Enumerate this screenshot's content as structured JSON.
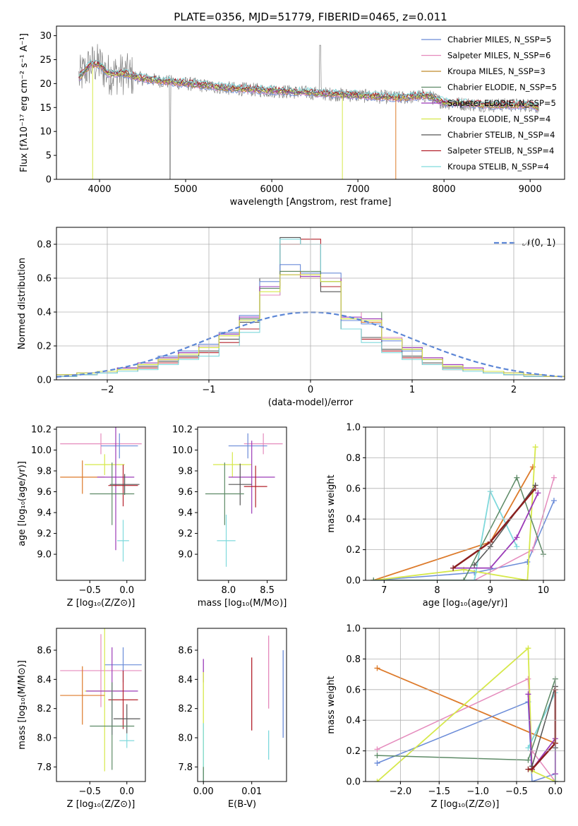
{
  "colors": {
    "blue": "#6a8bd8",
    "pink": "#e58bbd",
    "orange": "#dd7a2a",
    "green": "#5d8a66",
    "purple": "#9b3bb8",
    "lime": "#d6e84a",
    "gray": "#777777",
    "red": "#b3202a",
    "darkred": "#8b2020",
    "cyan": "#7fd9dc"
  },
  "chart_data": [
    {
      "type": "line",
      "title": "PLATE=0356, MJD=51779, FIBERID=0465, z=0.011",
      "xlabel": "wavelength [Angstrom, rest frame]",
      "ylabel": "Flux [fλ10⁻¹⁷ erg cm⁻² s⁻¹ A⁻¹]",
      "xlim": [
        3500,
        9400
      ],
      "ylim": [
        0,
        32
      ],
      "xticks": [
        "4000",
        "5000",
        "6000",
        "7000",
        "8000",
        "9000"
      ],
      "yticks": [
        "0",
        "5",
        "10",
        "15",
        "20",
        "25",
        "30"
      ],
      "grid": false,
      "legend_position": "top-right",
      "legend": [
        {
          "label": "Chabrier MILES, N_SSP=5",
          "color": "#6a8bd8"
        },
        {
          "label": "Salpeter MILES, N_SSP=6",
          "color": "#e58bbd"
        },
        {
          "label": "Kroupa MILES, N_SSP=3",
          "color": "#c08a2a"
        },
        {
          "label": "Chabrier ELODIE, N_SSP=5",
          "color": "#5d8a66"
        },
        {
          "label": "Salpeter ELODIE, N_SSP=5",
          "color": "#9b3bb8"
        },
        {
          "label": "Kroupa ELODIE, N_SSP=4",
          "color": "#d6e84a"
        },
        {
          "label": "Chabrier STELIB, N_SSP=4",
          "color": "#555555"
        },
        {
          "label": "Salpeter STELIB, N_SSP=4",
          "color": "#b3202a"
        },
        {
          "label": "Kroupa STELIB, N_SSP=4",
          "color": "#7fd9dc"
        }
      ],
      "continuum": {
        "x": [
          3750,
          3900,
          4000,
          4100,
          4300,
          4500,
          5000,
          5500,
          6000,
          6500,
          7000,
          7500,
          7800,
          8000,
          8500,
          9000,
          9100
        ],
        "y": [
          21,
          24,
          24,
          22,
          22,
          21,
          20,
          19,
          18.5,
          18,
          17.5,
          17,
          17.5,
          16,
          15.5,
          15.5,
          15
        ]
      }
    },
    {
      "type": "line",
      "xlabel": "(data-model)/error",
      "ylabel": "Normed distribution",
      "xlim": [
        -2.5,
        2.5
      ],
      "ylim": [
        0,
        0.9
      ],
      "xticks": [
        "−2",
        "−1",
        "0",
        "1",
        "2"
      ],
      "yticks": [
        "0.0",
        "0.2",
        "0.4",
        "0.6",
        "0.8"
      ],
      "grid": true,
      "legend_position": "top-right",
      "legend": [
        {
          "label": "𝒩(0, 1)",
          "color": "#5c86d6"
        }
      ],
      "bin_edges": [
        -2.5,
        -2.3,
        -2.1,
        -1.9,
        -1.7,
        -1.5,
        -1.3,
        -1.1,
        -0.9,
        -0.7,
        -0.5,
        -0.3,
        -0.1,
        0.1,
        0.3,
        0.5,
        0.7,
        0.9,
        1.1,
        1.3,
        1.5,
        1.7,
        1.9,
        2.1,
        2.3,
        2.5
      ],
      "histograms": [
        {
          "color": "#b3202a",
          "values": [
            0.02,
            0.03,
            0.04,
            0.05,
            0.07,
            0.1,
            0.13,
            0.16,
            0.22,
            0.3,
            0.55,
            0.8,
            0.83,
            0.55,
            0.3,
            0.24,
            0.17,
            0.13,
            0.09,
            0.06,
            0.05,
            0.04,
            0.03,
            0.02,
            0.02
          ]
        },
        {
          "color": "#555555",
          "values": [
            0.02,
            0.03,
            0.04,
            0.06,
            0.08,
            0.11,
            0.14,
            0.17,
            0.24,
            0.34,
            0.6,
            0.84,
            0.8,
            0.52,
            0.3,
            0.25,
            0.18,
            0.14,
            0.1,
            0.07,
            0.05,
            0.04,
            0.03,
            0.02,
            0.02
          ]
        },
        {
          "color": "#7fd9dc",
          "values": [
            0.02,
            0.03,
            0.04,
            0.05,
            0.06,
            0.09,
            0.12,
            0.14,
            0.2,
            0.28,
            0.5,
            0.83,
            0.8,
            0.58,
            0.3,
            0.22,
            0.16,
            0.12,
            0.09,
            0.06,
            0.05,
            0.04,
            0.03,
            0.02,
            0.02
          ]
        },
        {
          "color": "#e58bbd",
          "values": [
            0.03,
            0.04,
            0.05,
            0.07,
            0.09,
            0.12,
            0.16,
            0.2,
            0.26,
            0.36,
            0.5,
            0.62,
            0.62,
            0.58,
            0.4,
            0.36,
            0.25,
            0.19,
            0.13,
            0.09,
            0.07,
            0.05,
            0.04,
            0.03,
            0.02
          ]
        },
        {
          "color": "#6a8bd8",
          "values": [
            0.03,
            0.04,
            0.05,
            0.07,
            0.1,
            0.14,
            0.17,
            0.21,
            0.28,
            0.38,
            0.58,
            0.68,
            0.63,
            0.63,
            0.35,
            0.33,
            0.23,
            0.17,
            0.12,
            0.08,
            0.06,
            0.05,
            0.04,
            0.03,
            0.02
          ]
        },
        {
          "color": "#dd7a2a",
          "values": [
            0.03,
            0.04,
            0.05,
            0.07,
            0.09,
            0.12,
            0.15,
            0.19,
            0.26,
            0.36,
            0.55,
            0.64,
            0.6,
            0.6,
            0.36,
            0.34,
            0.24,
            0.18,
            0.12,
            0.08,
            0.06,
            0.05,
            0.04,
            0.03,
            0.02
          ]
        },
        {
          "color": "#5d8a66",
          "values": [
            0.03,
            0.04,
            0.05,
            0.07,
            0.09,
            0.13,
            0.16,
            0.2,
            0.27,
            0.36,
            0.54,
            0.64,
            0.64,
            0.58,
            0.4,
            0.4,
            0.24,
            0.18,
            0.12,
            0.08,
            0.06,
            0.05,
            0.04,
            0.03,
            0.02
          ]
        },
        {
          "color": "#9b3bb8",
          "values": [
            0.03,
            0.04,
            0.05,
            0.07,
            0.1,
            0.13,
            0.16,
            0.2,
            0.27,
            0.37,
            0.55,
            0.62,
            0.61,
            0.6,
            0.37,
            0.36,
            0.24,
            0.19,
            0.13,
            0.09,
            0.07,
            0.05,
            0.04,
            0.03,
            0.02
          ]
        },
        {
          "color": "#d6e84a",
          "values": [
            0.03,
            0.04,
            0.05,
            0.06,
            0.09,
            0.12,
            0.15,
            0.19,
            0.26,
            0.35,
            0.52,
            0.62,
            0.62,
            0.58,
            0.36,
            0.35,
            0.24,
            0.18,
            0.12,
            0.08,
            0.06,
            0.05,
            0.04,
            0.03,
            0.02
          ]
        }
      ],
      "normal_curve": {
        "mean": 0,
        "sigma": 1
      }
    },
    {
      "type": "scatter",
      "xlabel": "Z [log₁₀(Z/Z⊙)]",
      "ylabel": "age  [log₁₀(age/yr)]",
      "xlim": [
        -0.95,
        0.25
      ],
      "ylim": [
        8.75,
        10.22
      ],
      "xticks": [
        "−0.5",
        "0.0"
      ],
      "yticks": [
        "9.0",
        "9.2",
        "9.4",
        "9.6",
        "9.8",
        "10.0",
        "10.2"
      ],
      "grid": false,
      "crosses": [
        {
          "x": -0.35,
          "y": 10.06,
          "dx": 0.55,
          "dy": 0.1,
          "color": "#e58bbd"
        },
        {
          "x": -0.1,
          "y": 10.04,
          "dx": 0.25,
          "dy": 0.12,
          "color": "#6a8bd8"
        },
        {
          "x": -0.3,
          "y": 9.86,
          "dx": 0.27,
          "dy": 0.1,
          "color": "#d6e84a"
        },
        {
          "x": -0.6,
          "y": 9.74,
          "dx": 0.3,
          "dy": 0.16,
          "color": "#dd7a2a"
        },
        {
          "x": -0.15,
          "y": 9.74,
          "dx": 0.25,
          "dy": 0.7,
          "color": "#9b3bb8"
        },
        {
          "x": -0.05,
          "y": 9.66,
          "dx": 0.2,
          "dy": 0.2,
          "color": "#b3202a"
        },
        {
          "x": -0.03,
          "y": 9.67,
          "dx": 0.2,
          "dy": 0.1,
          "color": "#555555"
        },
        {
          "x": -0.2,
          "y": 9.58,
          "dx": 0.3,
          "dy": 0.3,
          "color": "#5d8a66"
        },
        {
          "x": -0.05,
          "y": 9.13,
          "dx": 0.08,
          "dy": 0.2,
          "color": "#7fd9dc"
        }
      ]
    },
    {
      "type": "scatter",
      "xlabel": "mass [log₁₀(M/M⊙)]",
      "ylabel": "",
      "xlim": [
        7.6,
        8.75
      ],
      "ylim": [
        8.75,
        10.22
      ],
      "xticks": [
        "8.0",
        "8.5"
      ],
      "yticks": [
        "9.0",
        "9.2",
        "9.4",
        "9.6",
        "9.8",
        "10.0",
        "10.2"
      ],
      "grid": false,
      "crosses": [
        {
          "x": 8.45,
          "y": 10.06,
          "dx": 0.25,
          "dy": 0.1,
          "color": "#e58bbd"
        },
        {
          "x": 8.25,
          "y": 10.04,
          "dx": 0.25,
          "dy": 0.12,
          "color": "#6a8bd8"
        },
        {
          "x": 8.05,
          "y": 9.86,
          "dx": 0.25,
          "dy": 0.12,
          "color": "#d6e84a"
        },
        {
          "x": 8.3,
          "y": 9.74,
          "dx": 0.3,
          "dy": 0.35,
          "color": "#9b3bb8"
        },
        {
          "x": 8.35,
          "y": 9.65,
          "dx": 0.15,
          "dy": 0.2,
          "color": "#b3202a"
        },
        {
          "x": 8.15,
          "y": 9.67,
          "dx": 0.15,
          "dy": 0.2,
          "color": "#555555"
        },
        {
          "x": 7.95,
          "y": 9.58,
          "dx": 0.25,
          "dy": 0.3,
          "color": "#5d8a66"
        },
        {
          "x": 7.97,
          "y": 9.13,
          "dx": 0.12,
          "dy": 0.25,
          "color": "#7fd9dc"
        }
      ]
    },
    {
      "type": "line",
      "xlabel": "age  [log₁₀(age/yr)]",
      "ylabel": "mass weight",
      "xlim": [
        6.65,
        10.4
      ],
      "ylim": [
        0,
        1
      ],
      "xticks": [
        "7",
        "8",
        "9",
        "10"
      ],
      "yticks": [
        "0.0",
        "0.2",
        "0.4",
        "0.6",
        "0.8",
        "1.0"
      ],
      "grid": true,
      "series": [
        {
          "color": "#dd7a2a",
          "x": [
            6.8,
            9.0,
            9.8
          ],
          "y": [
            0.0,
            0.25,
            0.74
          ],
          "width": 1.8
        },
        {
          "color": "#6a8bd8",
          "x": [
            6.8,
            8.7,
            9.7,
            10.2
          ],
          "y": [
            0.0,
            0.05,
            0.12,
            0.52
          ],
          "width": 1.5
        },
        {
          "color": "#e58bbd",
          "x": [
            6.8,
            8.7,
            9.8,
            10.2
          ],
          "y": [
            0.0,
            0.0,
            0.2,
            0.67
          ],
          "width": 1.5
        },
        {
          "color": "#d6e84a",
          "x": [
            6.8,
            8.5,
            9.7,
            9.85
          ],
          "y": [
            0.0,
            0.07,
            0.0,
            0.87
          ],
          "width": 1.8
        },
        {
          "color": "#7fd9dc",
          "x": [
            6.8,
            8.7,
            9.0,
            9.5
          ],
          "y": [
            0.0,
            0.0,
            0.58,
            0.22
          ],
          "width": 1.8
        },
        {
          "color": "#5d8a66",
          "x": [
            6.8,
            8.5,
            9.5,
            10.0
          ],
          "y": [
            0.0,
            0.0,
            0.67,
            0.17
          ],
          "width": 1.5
        },
        {
          "color": "#9b3bb8",
          "x": [
            8.3,
            9.0,
            9.5,
            9.9
          ],
          "y": [
            0.08,
            0.08,
            0.28,
            0.57
          ],
          "width": 1.8
        },
        {
          "color": "#555555",
          "x": [
            8.7,
            9.0,
            9.85
          ],
          "y": [
            0.1,
            0.22,
            0.62
          ],
          "width": 1.5
        },
        {
          "color": "#8b2020",
          "x": [
            8.3,
            9.0,
            9.85
          ],
          "y": [
            0.08,
            0.25,
            0.6
          ],
          "width": 2.5
        }
      ]
    },
    {
      "type": "scatter",
      "xlabel": "Z [log₁₀(Z/Z⊙)]",
      "ylabel": "mass [log₁₀(M/M⊙)]",
      "xlim": [
        -0.95,
        0.25
      ],
      "ylim": [
        7.7,
        8.75
      ],
      "xticks": [
        "−0.5",
        "0.0"
      ],
      "yticks": [
        "7.8",
        "8.0",
        "8.2",
        "8.4",
        "8.6"
      ],
      "grid": false,
      "crosses": [
        {
          "x": -0.35,
          "y": 8.46,
          "dx": 0.55,
          "dy": 0.25,
          "color": "#e58bbd"
        },
        {
          "x": -0.05,
          "y": 8.5,
          "dx": 0.25,
          "dy": 0.12,
          "color": "#6a8bd8"
        },
        {
          "x": -0.3,
          "y": 8.32,
          "dx": 0.27,
          "dy": 0.55,
          "color": "#d6e84a"
        },
        {
          "x": -0.6,
          "y": 8.29,
          "dx": 0.3,
          "dy": 0.2,
          "color": "#dd7a2a"
        },
        {
          "x": -0.2,
          "y": 8.32,
          "dx": 0.35,
          "dy": 0.3,
          "color": "#9b3bb8"
        },
        {
          "x": -0.05,
          "y": 8.26,
          "dx": 0.2,
          "dy": 0.2,
          "color": "#b3202a"
        },
        {
          "x": 0.0,
          "y": 8.13,
          "dx": 0.18,
          "dy": 0.1,
          "color": "#555555"
        },
        {
          "x": -0.2,
          "y": 8.08,
          "dx": 0.3,
          "dy": 0.3,
          "color": "#5d8a66"
        },
        {
          "x": 0.0,
          "y": 7.98,
          "dx": 0.1,
          "dy": 0.05,
          "color": "#7fd9dc"
        }
      ]
    },
    {
      "type": "scatter",
      "xlabel": "E(B-V)",
      "ylabel": "",
      "xlim": [
        -0.0012,
        0.0172
      ],
      "ylim": [
        7.7,
        8.75
      ],
      "xticks": [
        "0.00",
        "0.01"
      ],
      "yticks": [
        "7.8",
        "8.0",
        "8.2",
        "8.4",
        "8.6"
      ],
      "grid": false,
      "bars": [
        {
          "x": 0.0,
          "y": 8.46,
          "dy": 0.08,
          "color": "#9b3bb8"
        },
        {
          "x": 0.0,
          "y": 8.1,
          "dy": 0.35,
          "color": "#d6e84a"
        },
        {
          "x": 0.0,
          "y": 7.9,
          "dy": 0.2,
          "color": "#7fd9dc"
        },
        {
          "x": 0.0,
          "y": 7.75,
          "dy": 0.05,
          "color": "#5d8a66"
        },
        {
          "x": 0.01,
          "y": 8.3,
          "dy": 0.25,
          "color": "#b3202a"
        },
        {
          "x": 0.0135,
          "y": 8.45,
          "dy": 0.25,
          "color": "#e58bbd"
        },
        {
          "x": 0.0135,
          "y": 7.95,
          "dy": 0.1,
          "color": "#7fd9dc"
        },
        {
          "x": 0.0165,
          "y": 8.3,
          "dy": 0.3,
          "color": "#6a8bd8"
        }
      ]
    },
    {
      "type": "line",
      "xlabel": "Z [log₁₀(Z/Z⊙)]",
      "ylabel": "mass weight",
      "xlim": [
        -2.45,
        0.12
      ],
      "ylim": [
        0,
        1
      ],
      "xticks": [
        "−2.0",
        "−1.5",
        "−1.0",
        "−0.5",
        "0.0"
      ],
      "yticks": [
        "0.0",
        "0.2",
        "0.4",
        "0.6",
        "0.8",
        "1.0"
      ],
      "grid": true,
      "series": [
        {
          "color": "#dd7a2a",
          "x": [
            -2.3,
            0.0
          ],
          "y": [
            0.74,
            0.25
          ],
          "width": 1.8
        },
        {
          "color": "#6a8bd8",
          "x": [
            -2.3,
            -0.35,
            -0.3,
            0.0
          ],
          "y": [
            0.12,
            0.52,
            0.0,
            0.05
          ],
          "width": 1.5
        },
        {
          "color": "#e58bbd",
          "x": [
            -2.3,
            -0.35,
            -0.3,
            0.0
          ],
          "y": [
            0.21,
            0.67,
            0.2,
            0.0
          ],
          "width": 1.5
        },
        {
          "color": "#d6e84a",
          "x": [
            -2.3,
            -0.35,
            -0.3,
            0.0
          ],
          "y": [
            0.0,
            0.87,
            0.07,
            0.0
          ],
          "width": 1.8
        },
        {
          "color": "#7fd9dc",
          "x": [
            -0.35,
            0.0,
            0.0
          ],
          "y": [
            0.22,
            0.58,
            0.0
          ],
          "width": 1.8
        },
        {
          "color": "#5d8a66",
          "x": [
            -2.3,
            -0.35,
            0.0,
            0.0
          ],
          "y": [
            0.17,
            0.14,
            0.67,
            0.0
          ],
          "width": 1.5
        },
        {
          "color": "#9b3bb8",
          "x": [
            -0.35,
            -0.3,
            0.0,
            0.0
          ],
          "y": [
            0.57,
            0.08,
            0.28,
            0.05
          ],
          "width": 1.8
        },
        {
          "color": "#555555",
          "x": [
            -0.3,
            0.0,
            0.0
          ],
          "y": [
            0.1,
            0.62,
            0.22
          ],
          "width": 1.5
        },
        {
          "color": "#8b2020",
          "x": [
            -0.35,
            -0.3,
            0.0,
            0.0
          ],
          "y": [
            0.08,
            0.08,
            0.25,
            0.6
          ],
          "width": 2.5
        }
      ]
    }
  ]
}
